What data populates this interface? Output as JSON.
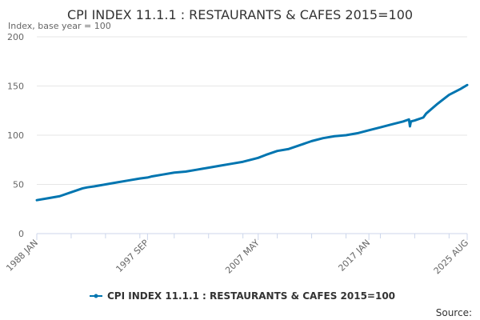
{
  "chart_data": {
    "type": "line",
    "title": "CPI INDEX 11.1.1 : RESTAURANTS & CAFES 2015=100",
    "subtitle": "Index, base year = 100",
    "xlabel": "",
    "ylabel": "",
    "ylim": [
      0,
      200
    ],
    "yticks": [
      "0",
      "50",
      "100",
      "150",
      "200"
    ],
    "xticks": [
      "1988 JAN",
      "1997 SEP",
      "2007 MAY",
      "2017 JAN",
      "2025 AUG"
    ],
    "grid": true,
    "legend": "bottom-center",
    "colors": {
      "line": "#0075b0",
      "grid": "#e6e6e6",
      "axis": "#ccd6eb"
    },
    "series": [
      {
        "name": "CPI INDEX 11.1.1 : RESTAURANTS & CAFES 2015=100",
        "x": [
          "1988 JAN",
          "1989 JAN",
          "1990 JAN",
          "1991 JAN",
          "1992 JAN",
          "1992 JUN",
          "1993 JAN",
          "1994 JAN",
          "1995 JAN",
          "1996 JAN",
          "1997 JAN",
          "1997 SEP",
          "1998 JAN",
          "1999 JAN",
          "2000 JAN",
          "2001 JAN",
          "2002 JAN",
          "2003 JAN",
          "2004 JAN",
          "2005 JAN",
          "2006 JAN",
          "2007 JAN",
          "2007 MAY",
          "2008 JAN",
          "2009 JAN",
          "2010 JAN",
          "2011 JAN",
          "2012 JAN",
          "2013 JAN",
          "2014 JAN",
          "2015 JAN",
          "2016 JAN",
          "2017 JAN",
          "2018 JAN",
          "2019 JAN",
          "2020 JAN",
          "2020 JUL",
          "2020 AUG",
          "2020 SEP",
          "2021 JAN",
          "2021 OCT",
          "2022 JAN",
          "2023 JAN",
          "2024 JAN",
          "2025 JAN",
          "2025 AUG"
        ],
        "values": [
          34,
          36,
          38,
          42,
          46,
          47,
          48,
          50,
          52,
          54,
          56,
          57,
          58,
          60,
          62,
          63,
          65,
          67,
          69,
          71,
          73,
          76,
          77,
          80,
          84,
          86,
          90,
          94,
          97,
          99,
          100,
          102,
          105,
          108,
          111,
          114,
          116,
          109,
          114,
          115,
          118,
          122,
          132,
          141,
          147,
          151
        ]
      }
    ]
  },
  "credits": "Source:"
}
